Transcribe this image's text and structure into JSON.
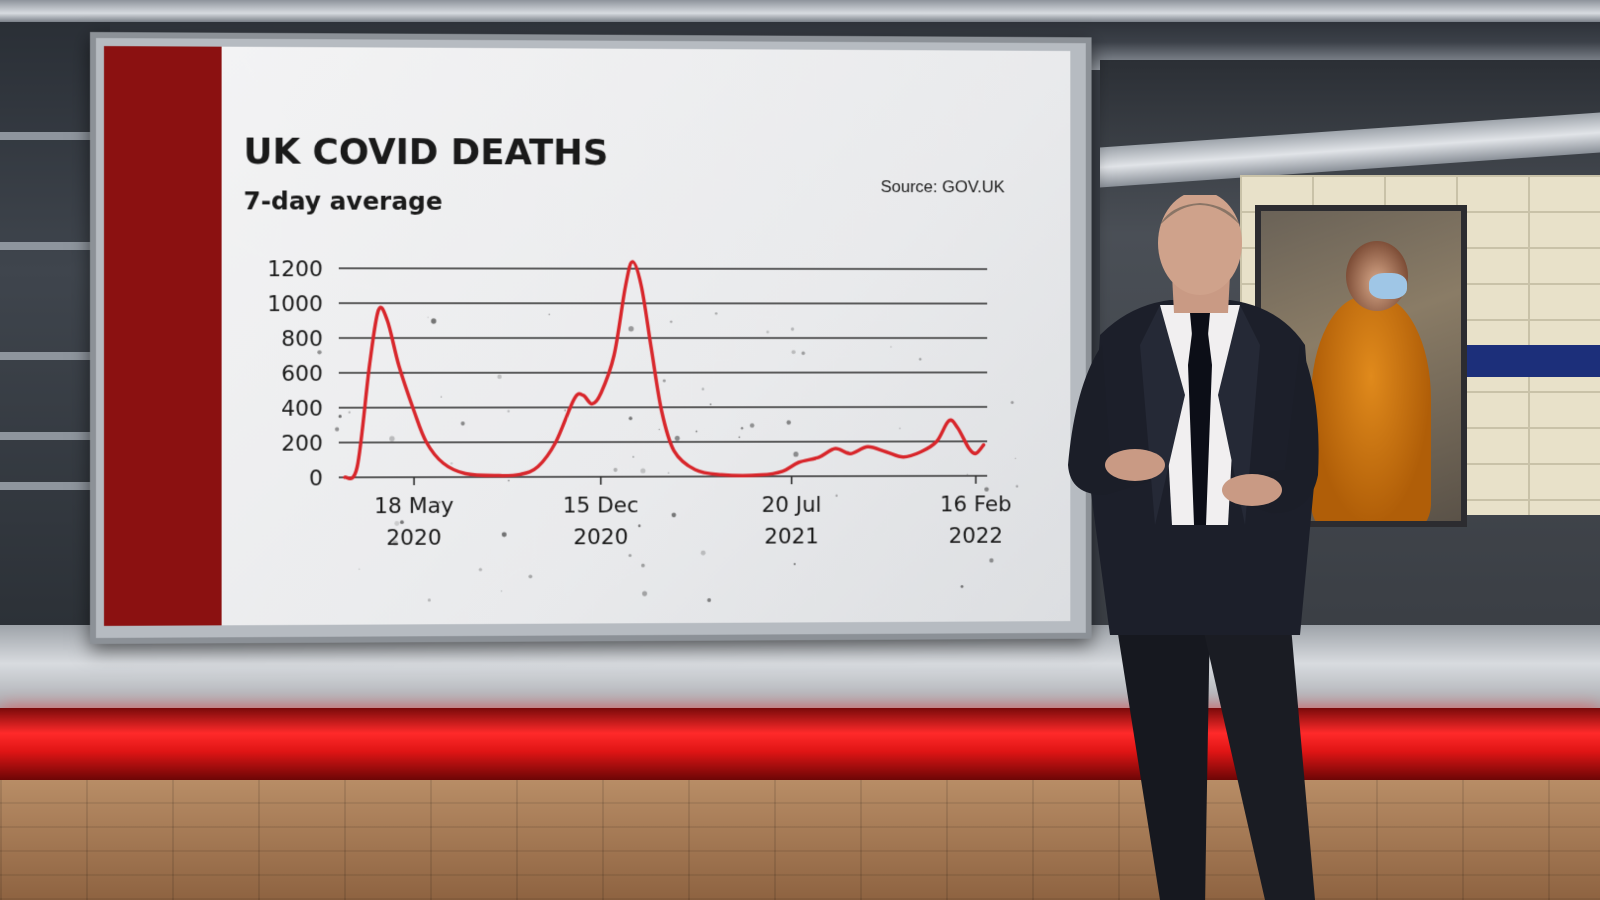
{
  "chart_data": {
    "type": "line",
    "title": "UK COVID DEATHS",
    "subtitle": "7-day average",
    "source": "Source: GOV.UK",
    "xlabel": "",
    "ylabel": "",
    "x_ticks": [
      {
        "date": "2020-05-18",
        "line1": "18 May",
        "line2": "2020"
      },
      {
        "date": "2020-12-15",
        "line1": "15 Dec",
        "line2": "2020"
      },
      {
        "date": "2021-07-20",
        "line1": "20 Jul",
        "line2": "2021"
      },
      {
        "date": "2022-02-16",
        "line1": "16 Feb",
        "line2": "2022"
      }
    ],
    "y_ticks": [
      0,
      200,
      400,
      600,
      800,
      1000,
      1200
    ],
    "ylim": [
      0,
      1200
    ],
    "xlim": [
      "2020-03-01",
      "2022-03-01"
    ],
    "grid": true,
    "series": [
      {
        "color": "#d8262b",
        "points": [
          [
            "2020-03-01",
            0
          ],
          [
            "2020-03-15",
            60
          ],
          [
            "2020-03-29",
            650
          ],
          [
            "2020-04-08",
            960
          ],
          [
            "2020-04-18",
            900
          ],
          [
            "2020-05-01",
            640
          ],
          [
            "2020-05-18",
            380
          ],
          [
            "2020-06-01",
            200
          ],
          [
            "2020-06-20",
            80
          ],
          [
            "2020-07-15",
            20
          ],
          [
            "2020-08-20",
            8
          ],
          [
            "2020-09-15",
            15
          ],
          [
            "2020-10-05",
            60
          ],
          [
            "2020-10-25",
            200
          ],
          [
            "2020-11-15",
            450
          ],
          [
            "2020-11-25",
            470
          ],
          [
            "2020-12-05",
            420
          ],
          [
            "2020-12-15",
            480
          ],
          [
            "2020-12-30",
            700
          ],
          [
            "2021-01-12",
            1100
          ],
          [
            "2021-01-20",
            1240
          ],
          [
            "2021-01-30",
            1100
          ],
          [
            "2021-02-10",
            750
          ],
          [
            "2021-02-22",
            380
          ],
          [
            "2021-03-08",
            150
          ],
          [
            "2021-04-01",
            40
          ],
          [
            "2021-05-01",
            10
          ],
          [
            "2021-06-15",
            8
          ],
          [
            "2021-07-10",
            30
          ],
          [
            "2021-07-28",
            80
          ],
          [
            "2021-08-20",
            110
          ],
          [
            "2021-09-08",
            160
          ],
          [
            "2021-09-25",
            130
          ],
          [
            "2021-10-15",
            170
          ],
          [
            "2021-11-05",
            140
          ],
          [
            "2021-11-25",
            110
          ],
          [
            "2021-12-15",
            140
          ],
          [
            "2022-01-02",
            200
          ],
          [
            "2022-01-16",
            320
          ],
          [
            "2022-01-26",
            280
          ],
          [
            "2022-02-08",
            160
          ],
          [
            "2022-02-16",
            130
          ],
          [
            "2022-02-25",
            180
          ]
        ]
      }
    ]
  }
}
